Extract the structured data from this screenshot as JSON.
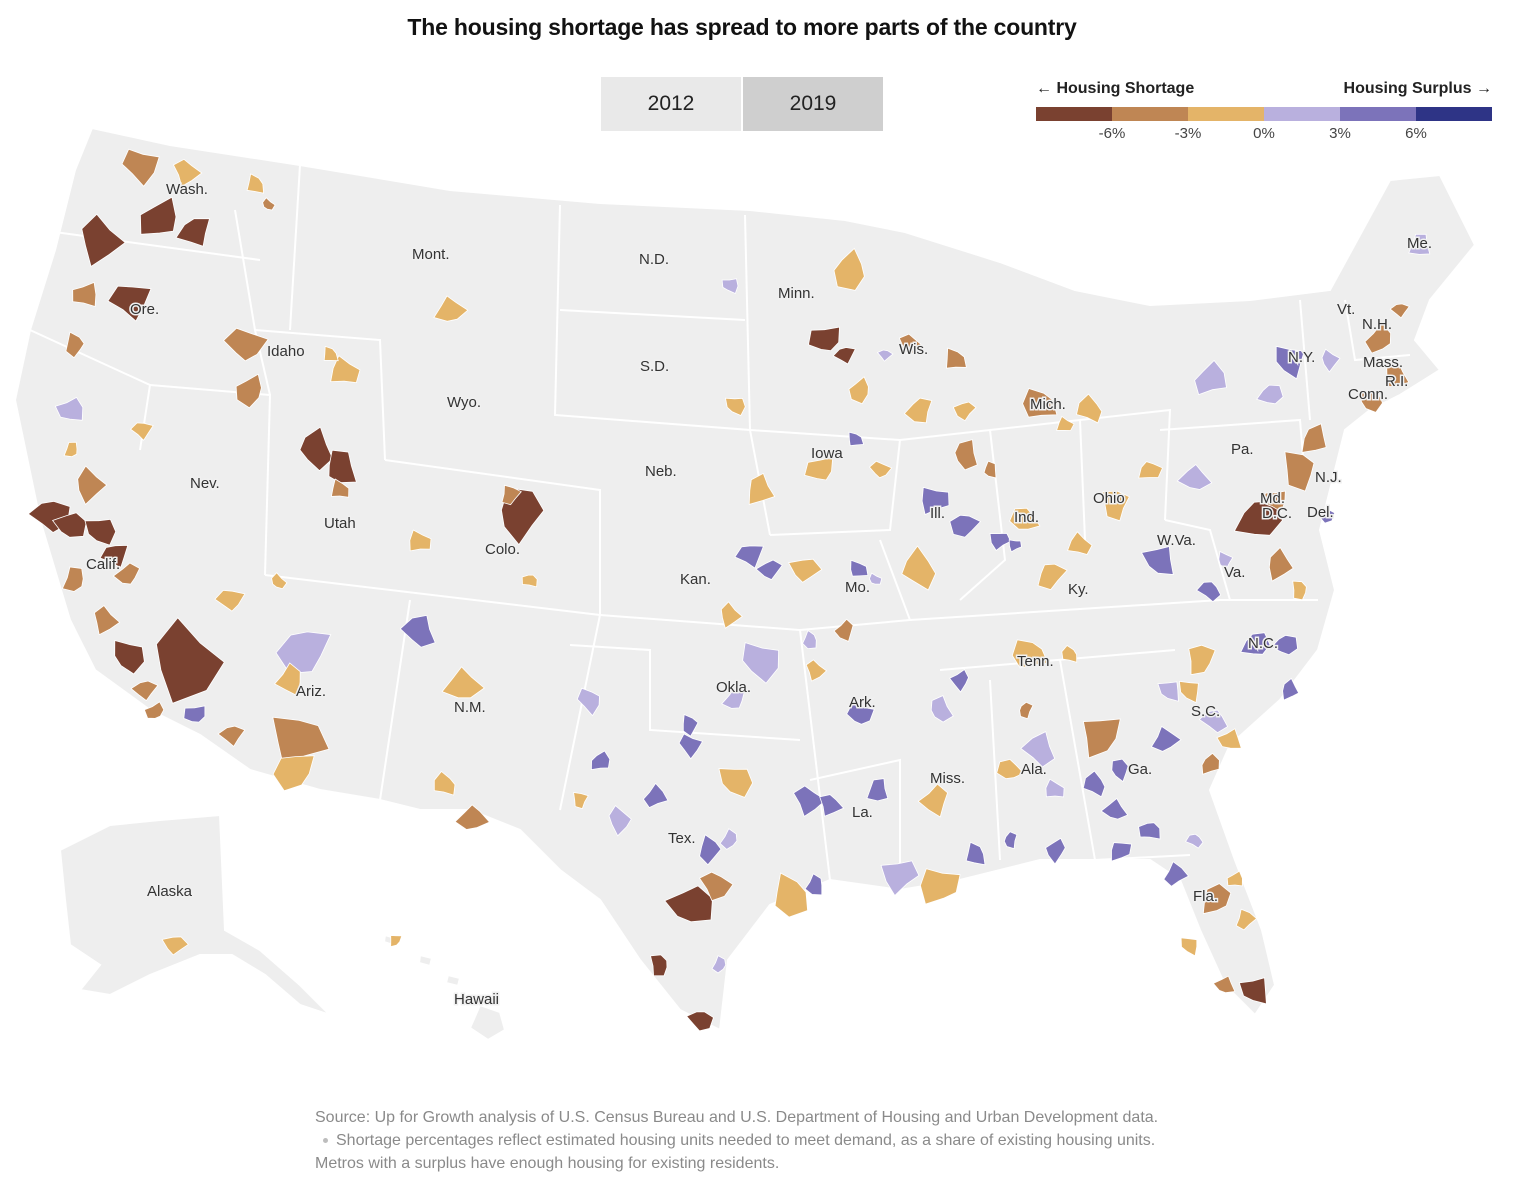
{
  "title": "The housing shortage has spread to more parts of the country",
  "toggle": {
    "options": [
      "2012",
      "2019"
    ],
    "selected": "2019"
  },
  "legend": {
    "left_label": "← Housing Shortage",
    "right_label": "Housing Surplus →",
    "ticks": [
      "-6%",
      "-3%",
      "0%",
      "3%",
      "6%"
    ],
    "colors": [
      "#7a4130",
      "#bf8654",
      "#e4b468",
      "#b9b0de",
      "#7c73ba",
      "#2e3486"
    ]
  },
  "map": {
    "land_color": "#eeeeee",
    "border_color": "#ffffff",
    "state_labels": {
      "wa": "Wash.",
      "or": "Ore.",
      "ca": "Calif.",
      "id": "Idaho",
      "nv": "Nev.",
      "mt": "Mont.",
      "wy": "Wyo.",
      "ut": "Utah",
      "az": "Ariz.",
      "co": "Colo.",
      "nm": "N.M.",
      "nd": "N.D.",
      "sd": "S.D.",
      "ne": "Neb.",
      "ks": "Kan.",
      "ok": "Okla.",
      "tx": "Tex.",
      "mn": "Minn.",
      "ia": "Iowa",
      "mo": "Mo.",
      "ar": "Ark.",
      "la": "La.",
      "wi": "Wis.",
      "il": "Ill.",
      "mi": "Mich.",
      "in": "Ind.",
      "oh": "Ohio",
      "ky": "Ky.",
      "tn": "Tenn.",
      "ms": "Miss.",
      "al": "Ala.",
      "ga": "Ga.",
      "fl": "Fla.",
      "sc": "S.C.",
      "nc": "N.C.",
      "va": "Va.",
      "wv": "W.Va.",
      "pa": "Pa.",
      "ny": "N.Y.",
      "vt": "Vt.",
      "nh": "N.H.",
      "me": "Me.",
      "ma": "Mass.",
      "ri": "R.I.",
      "ct": "Conn.",
      "nj": "N.J.",
      "de": "Del.",
      "md": "Md.",
      "dc": "D.C.",
      "ak": "Alaska",
      "hi": "Hawaii"
    }
  },
  "source": {
    "line1": "Source: Up for Growth analysis of U.S. Census Bureau and U.S. Department of Housing and Urban Development data.",
    "note": "Shortage percentages reflect estimated housing units needed to meet demand, as a share of existing housing units. Metros with a surplus have enough housing for existing residents."
  }
}
